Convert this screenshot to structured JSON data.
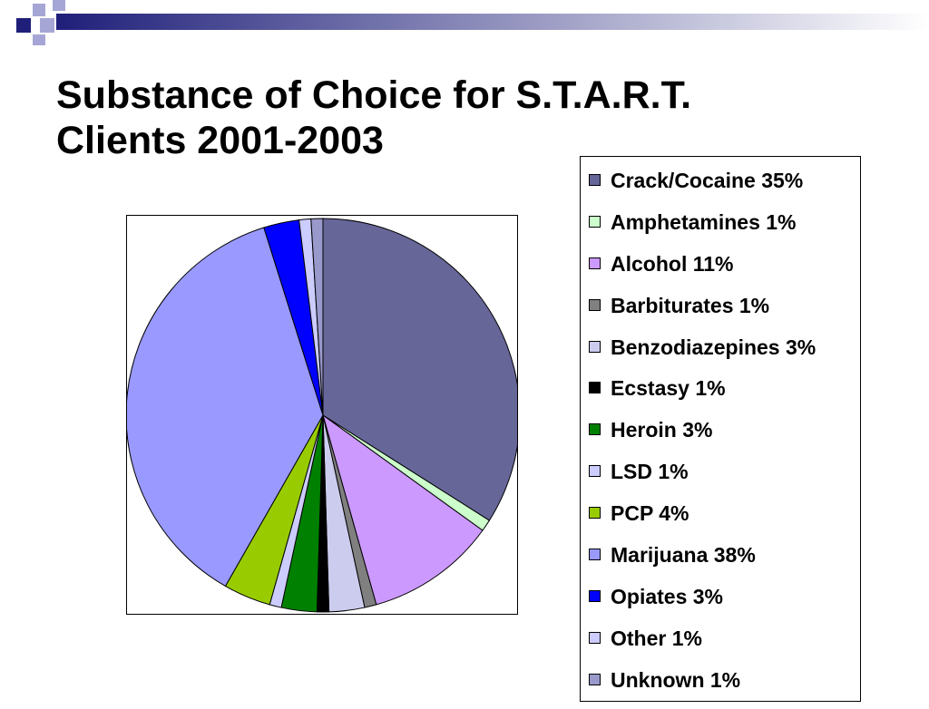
{
  "title_lines": [
    "Substance of Choice for S.T.A.R.T.",
    "Clients 2001-2003"
  ],
  "chart_data": {
    "type": "pie",
    "title": "Substance of Choice for S.T.A.R.T. Clients 2001-2003",
    "legend_position": "right",
    "slices": [
      {
        "label": "Crack/Cocaine 35%",
        "name": "Crack/Cocaine",
        "value": 35,
        "color": "#666699"
      },
      {
        "label": "Amphetamines 1%",
        "name": "Amphetamines",
        "value": 1,
        "color": "#ccffcc"
      },
      {
        "label": "Alcohol 11%",
        "name": "Alcohol",
        "value": 11,
        "color": "#cc99ff"
      },
      {
        "label": "Barbiturates 1%",
        "name": "Barbiturates",
        "value": 1,
        "color": "#808080"
      },
      {
        "label": "Benzodiazepines 3%",
        "name": "Benzodiazepines",
        "value": 3,
        "color": "#ccccee"
      },
      {
        "label": "Ecstasy 1%",
        "name": "Ecstasy",
        "value": 1,
        "color": "#000000"
      },
      {
        "label": "Heroin 3%",
        "name": "Heroin",
        "value": 3,
        "color": "#008000"
      },
      {
        "label": "LSD 1%",
        "name": "LSD",
        "value": 1,
        "color": "#ccccff"
      },
      {
        "label": "PCP 4%",
        "name": "PCP",
        "value": 4,
        "color": "#99cc00"
      },
      {
        "label": "Marijuana 38%",
        "name": "Marijuana",
        "value": 38,
        "color": "#9999ff"
      },
      {
        "label": "Opiates 3%",
        "name": "Opiates",
        "value": 3,
        "color": "#0000ff"
      },
      {
        "label": "Other 1%",
        "name": "Other",
        "value": 1,
        "color": "#ccccff"
      },
      {
        "label": "Unknown 1%",
        "name": "Unknown",
        "value": 1,
        "color": "#9999cc"
      }
    ]
  },
  "decoration": {
    "dark_color": "#1f1f7a",
    "light_color": "#a6a6d6",
    "band_start": "#1f1f7a",
    "band_end": "#ffffff"
  }
}
